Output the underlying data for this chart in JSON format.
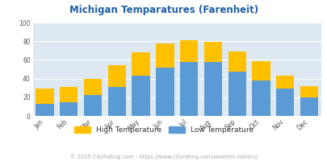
{
  "title": "Michigan Temparatures (Farenheit)",
  "months": [
    "Jan",
    "Feb",
    "Mar",
    "Apr",
    "May",
    "Jun",
    "Jul",
    "Aug",
    "Sep",
    "Oct",
    "Nov",
    "Dec"
  ],
  "low_temps": [
    13,
    15,
    22,
    31,
    43,
    52,
    58,
    58,
    47,
    38,
    29,
    20
  ],
  "high_diff": [
    16,
    16,
    18,
    23,
    25,
    26,
    23,
    21,
    22,
    21,
    14,
    12
  ],
  "low_color": "#5b9bd5",
  "high_color": "#ffc000",
  "bg_color": "#dde8f0",
  "title_color": "#1f5fa6",
  "grid_color": "#ffffff",
  "tick_color": "#555555",
  "ylabel_ticks": [
    0,
    20,
    40,
    60,
    80,
    100
  ],
  "ylim": [
    0,
    100
  ],
  "footnote": "© 2025 CityRating.com - https://www.cityrating.com/weather-history/",
  "footnote_color": "#aaaaaa",
  "legend_high": "High Temperature",
  "legend_low": "Low Temperature",
  "legend_text_color": "#333333"
}
